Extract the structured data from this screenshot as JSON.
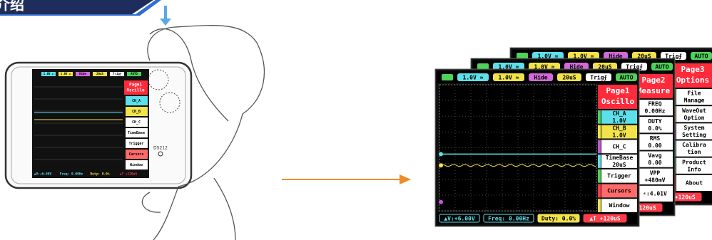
{
  "header": {
    "title": "介绍"
  },
  "device": {
    "model": "DS212"
  },
  "topbar": [
    "1.0V ≃",
    "1.0V ≃",
    "Hide",
    "20uS",
    "Trig⨍",
    "AUTO"
  ],
  "bottombar": [
    "▲V:+6.00V",
    "Freq: 0.00Hz",
    "Duty: 0.0%",
    "▲T +120uS"
  ],
  "pages": [
    {
      "title": [
        "Page1",
        "Oscillo"
      ],
      "items": [
        [
          "CH_A",
          "1.0V"
        ],
        [
          "CH_B",
          "1.0V"
        ],
        [
          "CH_C"
        ],
        [
          "TimeBase",
          "20uS"
        ],
        [
          "Trigger"
        ],
        [
          "Cursors"
        ],
        [
          "Window"
        ]
      ]
    },
    {
      "title": [
        "Page2",
        "Measure"
      ],
      "items": [
        [
          "FREQ",
          "0.00Hz"
        ],
        [
          "DUTY",
          "0.0%"
        ],
        [
          "RMS",
          "0.00"
        ],
        [
          "Vavg",
          "0.00"
        ],
        [
          "VPP",
          "+480mV"
        ],
        [
          "⚡:4.01V"
        ]
      ]
    },
    {
      "title": [
        "Page3",
        "Options"
      ],
      "items": [
        [
          "File",
          "Manage"
        ],
        [
          "WaveOut",
          "Option"
        ],
        [
          "System",
          "Setting"
        ],
        [
          "Calibra",
          "tion"
        ],
        [
          "Product",
          "Info"
        ],
        [
          "About"
        ]
      ]
    }
  ]
}
